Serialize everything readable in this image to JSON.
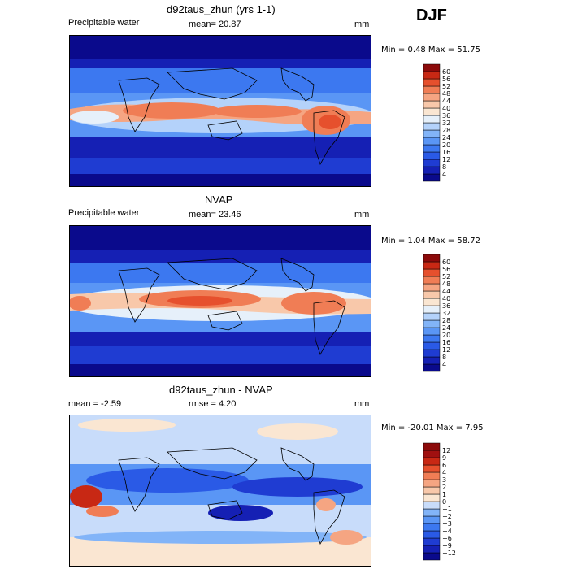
{
  "season": "DJF",
  "panels": [
    {
      "title": "d92taus_zhun (yrs 1-1)",
      "left_label": "Precipitable water",
      "center_label": "mean=  20.87",
      "right_label": "mm",
      "minmax": "Min =   0.48 Max =  51.75",
      "colorbar": {
        "levels": [
          "4",
          "8",
          "12",
          "16",
          "20",
          "24",
          "28",
          "32",
          "36",
          "40",
          "44",
          "48",
          "52",
          "56",
          "60"
        ],
        "colors": [
          "#0a0a8c",
          "#1520b4",
          "#1f3cd2",
          "#2a5ae6",
          "#3c78f0",
          "#5a96f5",
          "#82b4f8",
          "#b4d2fa",
          "#e6f0fa",
          "#fae6d2",
          "#f8c8aa",
          "#f5a582",
          "#f07d55",
          "#e6502d",
          "#c82814",
          "#8c0a0a"
        ]
      }
    },
    {
      "title": "NVAP",
      "left_label": "Precipitable water",
      "center_label": "mean=  23.46",
      "right_label": "mm",
      "minmax": "Min =   1.04 Max =  58.72",
      "colorbar": {
        "levels": [
          "4",
          "8",
          "12",
          "16",
          "20",
          "24",
          "28",
          "32",
          "36",
          "40",
          "44",
          "48",
          "52",
          "56",
          "60"
        ],
        "colors": [
          "#0a0a8c",
          "#1520b4",
          "#1f3cd2",
          "#2a5ae6",
          "#3c78f0",
          "#5a96f5",
          "#82b4f8",
          "#b4d2fa",
          "#e6f0fa",
          "#fae6d2",
          "#f8c8aa",
          "#f5a582",
          "#f07d55",
          "#e6502d",
          "#c82814",
          "#8c0a0a"
        ]
      }
    },
    {
      "title": "d92taus_zhun - NVAP",
      "left_label": "mean =   -2.59",
      "center_label": "rmse =   4.20",
      "right_label": "mm",
      "minmax": "Min = -20.01 Max =   7.95",
      "colorbar": {
        "levels": [
          "−12",
          "−9",
          "−6",
          "−4",
          "−3",
          "−2",
          "−1",
          "0",
          "1",
          "2",
          "3",
          "4",
          "6",
          "9",
          "12"
        ],
        "colors": [
          "#0a0a8c",
          "#1520b4",
          "#1f3cd2",
          "#2a5ae6",
          "#3c78f0",
          "#5a96f5",
          "#82b4f8",
          "#c8dcfa",
          "#fae6d2",
          "#f8c8aa",
          "#f5a582",
          "#f07d55",
          "#e6502d",
          "#c82814",
          "#a01010",
          "#8c0a0a"
        ]
      }
    }
  ]
}
